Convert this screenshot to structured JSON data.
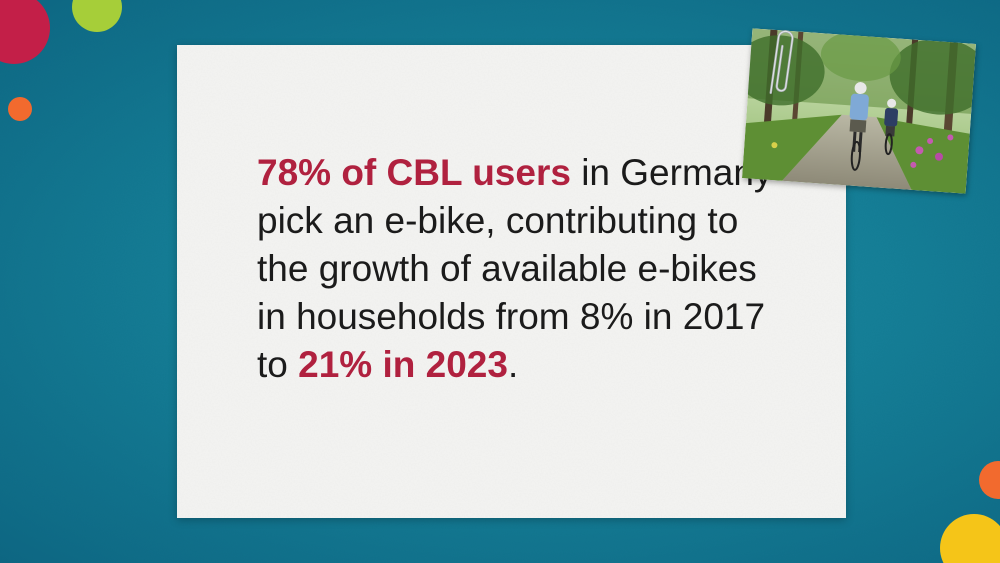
{
  "headline": {
    "highlight_start": "78% of CBL users",
    "text_1": " in Germany pick an e-bike, contributing to the growth of available e-bikes in households from 8% in 2017 to ",
    "highlight_end": "21% in 2023",
    "text_2": "."
  },
  "colors": {
    "background": "#177f98",
    "highlight": "#b0213f",
    "body_text": "#1b1b1b",
    "card": "#f4f4f2",
    "dot_red": "#c31f48",
    "dot_lime": "#a6ce39",
    "dot_orange": "#f26a2e",
    "dot_yellow": "#f5c518"
  },
  "photo": {
    "subject": "two cyclists riding on a forest path",
    "icon": "paperclip-icon"
  }
}
